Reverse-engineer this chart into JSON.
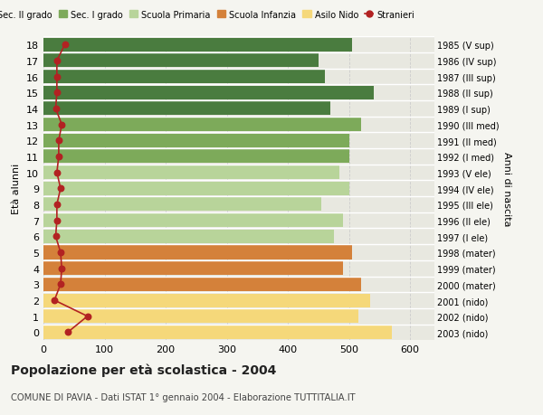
{
  "ages": [
    18,
    17,
    16,
    15,
    14,
    13,
    12,
    11,
    10,
    9,
    8,
    7,
    6,
    5,
    4,
    3,
    2,
    1,
    0
  ],
  "years": [
    "1985 (V sup)",
    "1986 (IV sup)",
    "1987 (III sup)",
    "1988 (II sup)",
    "1989 (I sup)",
    "1990 (III med)",
    "1991 (II med)",
    "1992 (I med)",
    "1993 (V ele)",
    "1994 (IV ele)",
    "1995 (III ele)",
    "1996 (II ele)",
    "1997 (I ele)",
    "1998 (mater)",
    "1999 (mater)",
    "2000 (mater)",
    "2001 (nido)",
    "2002 (nido)",
    "2003 (nido)"
  ],
  "bar_values": [
    505,
    450,
    460,
    540,
    470,
    520,
    500,
    500,
    485,
    500,
    455,
    490,
    475,
    505,
    490,
    520,
    535,
    515,
    570
  ],
  "bar_colors": [
    "#4a7c3f",
    "#4a7c3f",
    "#4a7c3f",
    "#4a7c3f",
    "#4a7c3f",
    "#7daa5a",
    "#7daa5a",
    "#7daa5a",
    "#b8d49a",
    "#b8d49a",
    "#b8d49a",
    "#b8d49a",
    "#b8d49a",
    "#d4813a",
    "#d4813a",
    "#d4813a",
    "#f5d87a",
    "#f5d87a",
    "#f5d87a"
  ],
  "stranieri_values": [
    35,
    22,
    22,
    22,
    20,
    30,
    25,
    25,
    22,
    28,
    22,
    22,
    20,
    28,
    30,
    28,
    18,
    72,
    40
  ],
  "legend_labels": [
    "Sec. II grado",
    "Sec. I grado",
    "Scuola Primaria",
    "Scuola Infanzia",
    "Asilo Nido",
    "Stranieri"
  ],
  "legend_colors": [
    "#4a7c3f",
    "#7daa5a",
    "#b8d49a",
    "#d4813a",
    "#f5d87a",
    "#b22222"
  ],
  "ylabel": "Età alunni",
  "right_label": "Anni di nascita",
  "title": "Popolazione per età scolastica - 2004",
  "subtitle": "COMUNE DI PAVIA - Dati ISTAT 1° gennaio 2004 - Elaborazione TUTTITALIA.IT",
  "xlim": [
    0,
    640
  ],
  "background_color": "#f5f5f0",
  "bar_background": "#e8e8e0",
  "grid_color": "#cccccc"
}
